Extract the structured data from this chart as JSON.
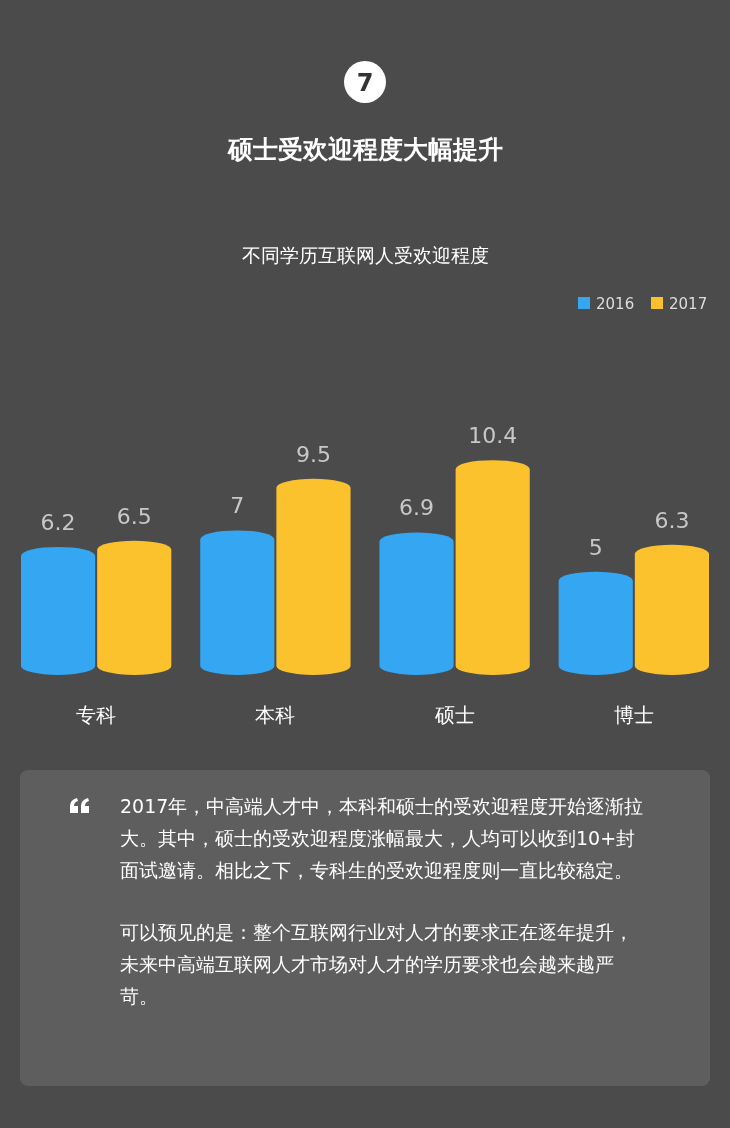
{
  "chart_data": {
    "type": "bar",
    "title": "硕士受欢迎程度大幅提升",
    "subtitle": "不同学历互联网人受欢迎程度",
    "categories": [
      "专科",
      "本科",
      "硕士",
      "博士"
    ],
    "series": [
      {
        "name": "2016",
        "color": "#35a6f2",
        "values": [
          6.2,
          7,
          6.9,
          5
        ]
      },
      {
        "name": "2017",
        "color": "#fcc22e",
        "values": [
          6.5,
          9.5,
          10.4,
          6.3
        ]
      }
    ],
    "data_labels": true,
    "legend": "top right",
    "tick_labels": "x",
    "annotations": [
      "7",
      "2017年，中高端人才中，本科和硕士的受欢迎程度开始逐渐拉大。其中，硕士的受欢迎程度涨幅最大，人均可以收到10+封面试邀请。相比之下，专科生的受欢迎程度则一直比较稳定。",
      "可以预见的是：整个互联网行业对人才的要求正在逐年提升，未来中高端互联网人才市场对人才的学历要求也会越来越严苛。"
    ]
  }
}
